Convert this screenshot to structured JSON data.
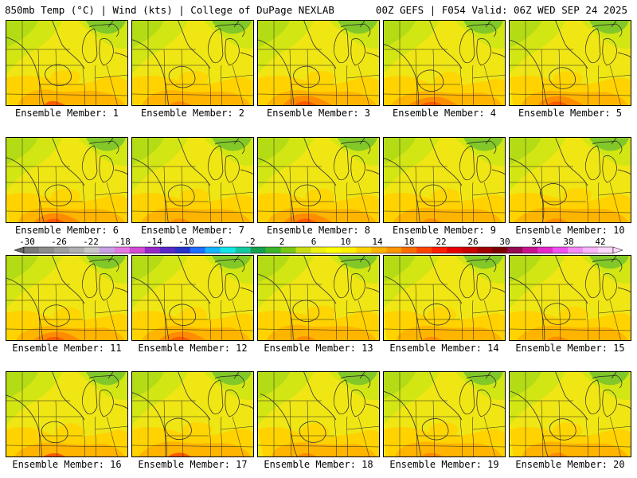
{
  "header": {
    "left": "850mb Temp (°C) | Wind (kts) | College of DuPage NEXLAB",
    "right": "00Z GEFS | F054 Valid: 06Z WED SEP 24 2025"
  },
  "member_prefix": "Ensemble Member: ",
  "members": [
    1,
    2,
    3,
    4,
    5,
    6,
    7,
    8,
    9,
    10,
    11,
    12,
    13,
    14,
    15,
    16,
    17,
    18,
    19,
    20
  ],
  "colorbar": {
    "tick_labels": [
      "-30",
      "-26",
      "-22",
      "-18",
      "-14",
      "-10",
      "-6",
      "-2",
      "2",
      "6",
      "10",
      "14",
      "18",
      "22",
      "26",
      "30",
      "34",
      "38",
      "42"
    ],
    "colors": [
      "#7a7a7a",
      "#8c8c8c",
      "#9e9e9e",
      "#b0b0b0",
      "#c8c8c8",
      "#c8a0e6",
      "#e678e6",
      "#d24bd2",
      "#9628c8",
      "#5a28c8",
      "#2832c8",
      "#1e6eff",
      "#14b4ff",
      "#14e6e6",
      "#14c8a0",
      "#14a050",
      "#3cb428",
      "#78c814",
      "#c8dc14",
      "#f0f014",
      "#ffff00",
      "#fff000",
      "#ffd200",
      "#ffb400",
      "#ff9600",
      "#ff6e00",
      "#ff4600",
      "#ff1e00",
      "#e60000",
      "#c80000",
      "#a00000",
      "#7d0000",
      "#960a50",
      "#c8148c",
      "#e628c8",
      "#f050f0",
      "#f58cf5",
      "#fab4fa",
      "#fcd8fc"
    ]
  },
  "map_colors": {
    "green": "#82c828",
    "lightgreen": "#b4dc14",
    "yellowgreen": "#d2e614",
    "yellow": "#f0e614",
    "yelloworange": "#ffd200",
    "orange": "#ffb400",
    "darkorange": "#ff8c00",
    "red": "#ff5a00"
  }
}
